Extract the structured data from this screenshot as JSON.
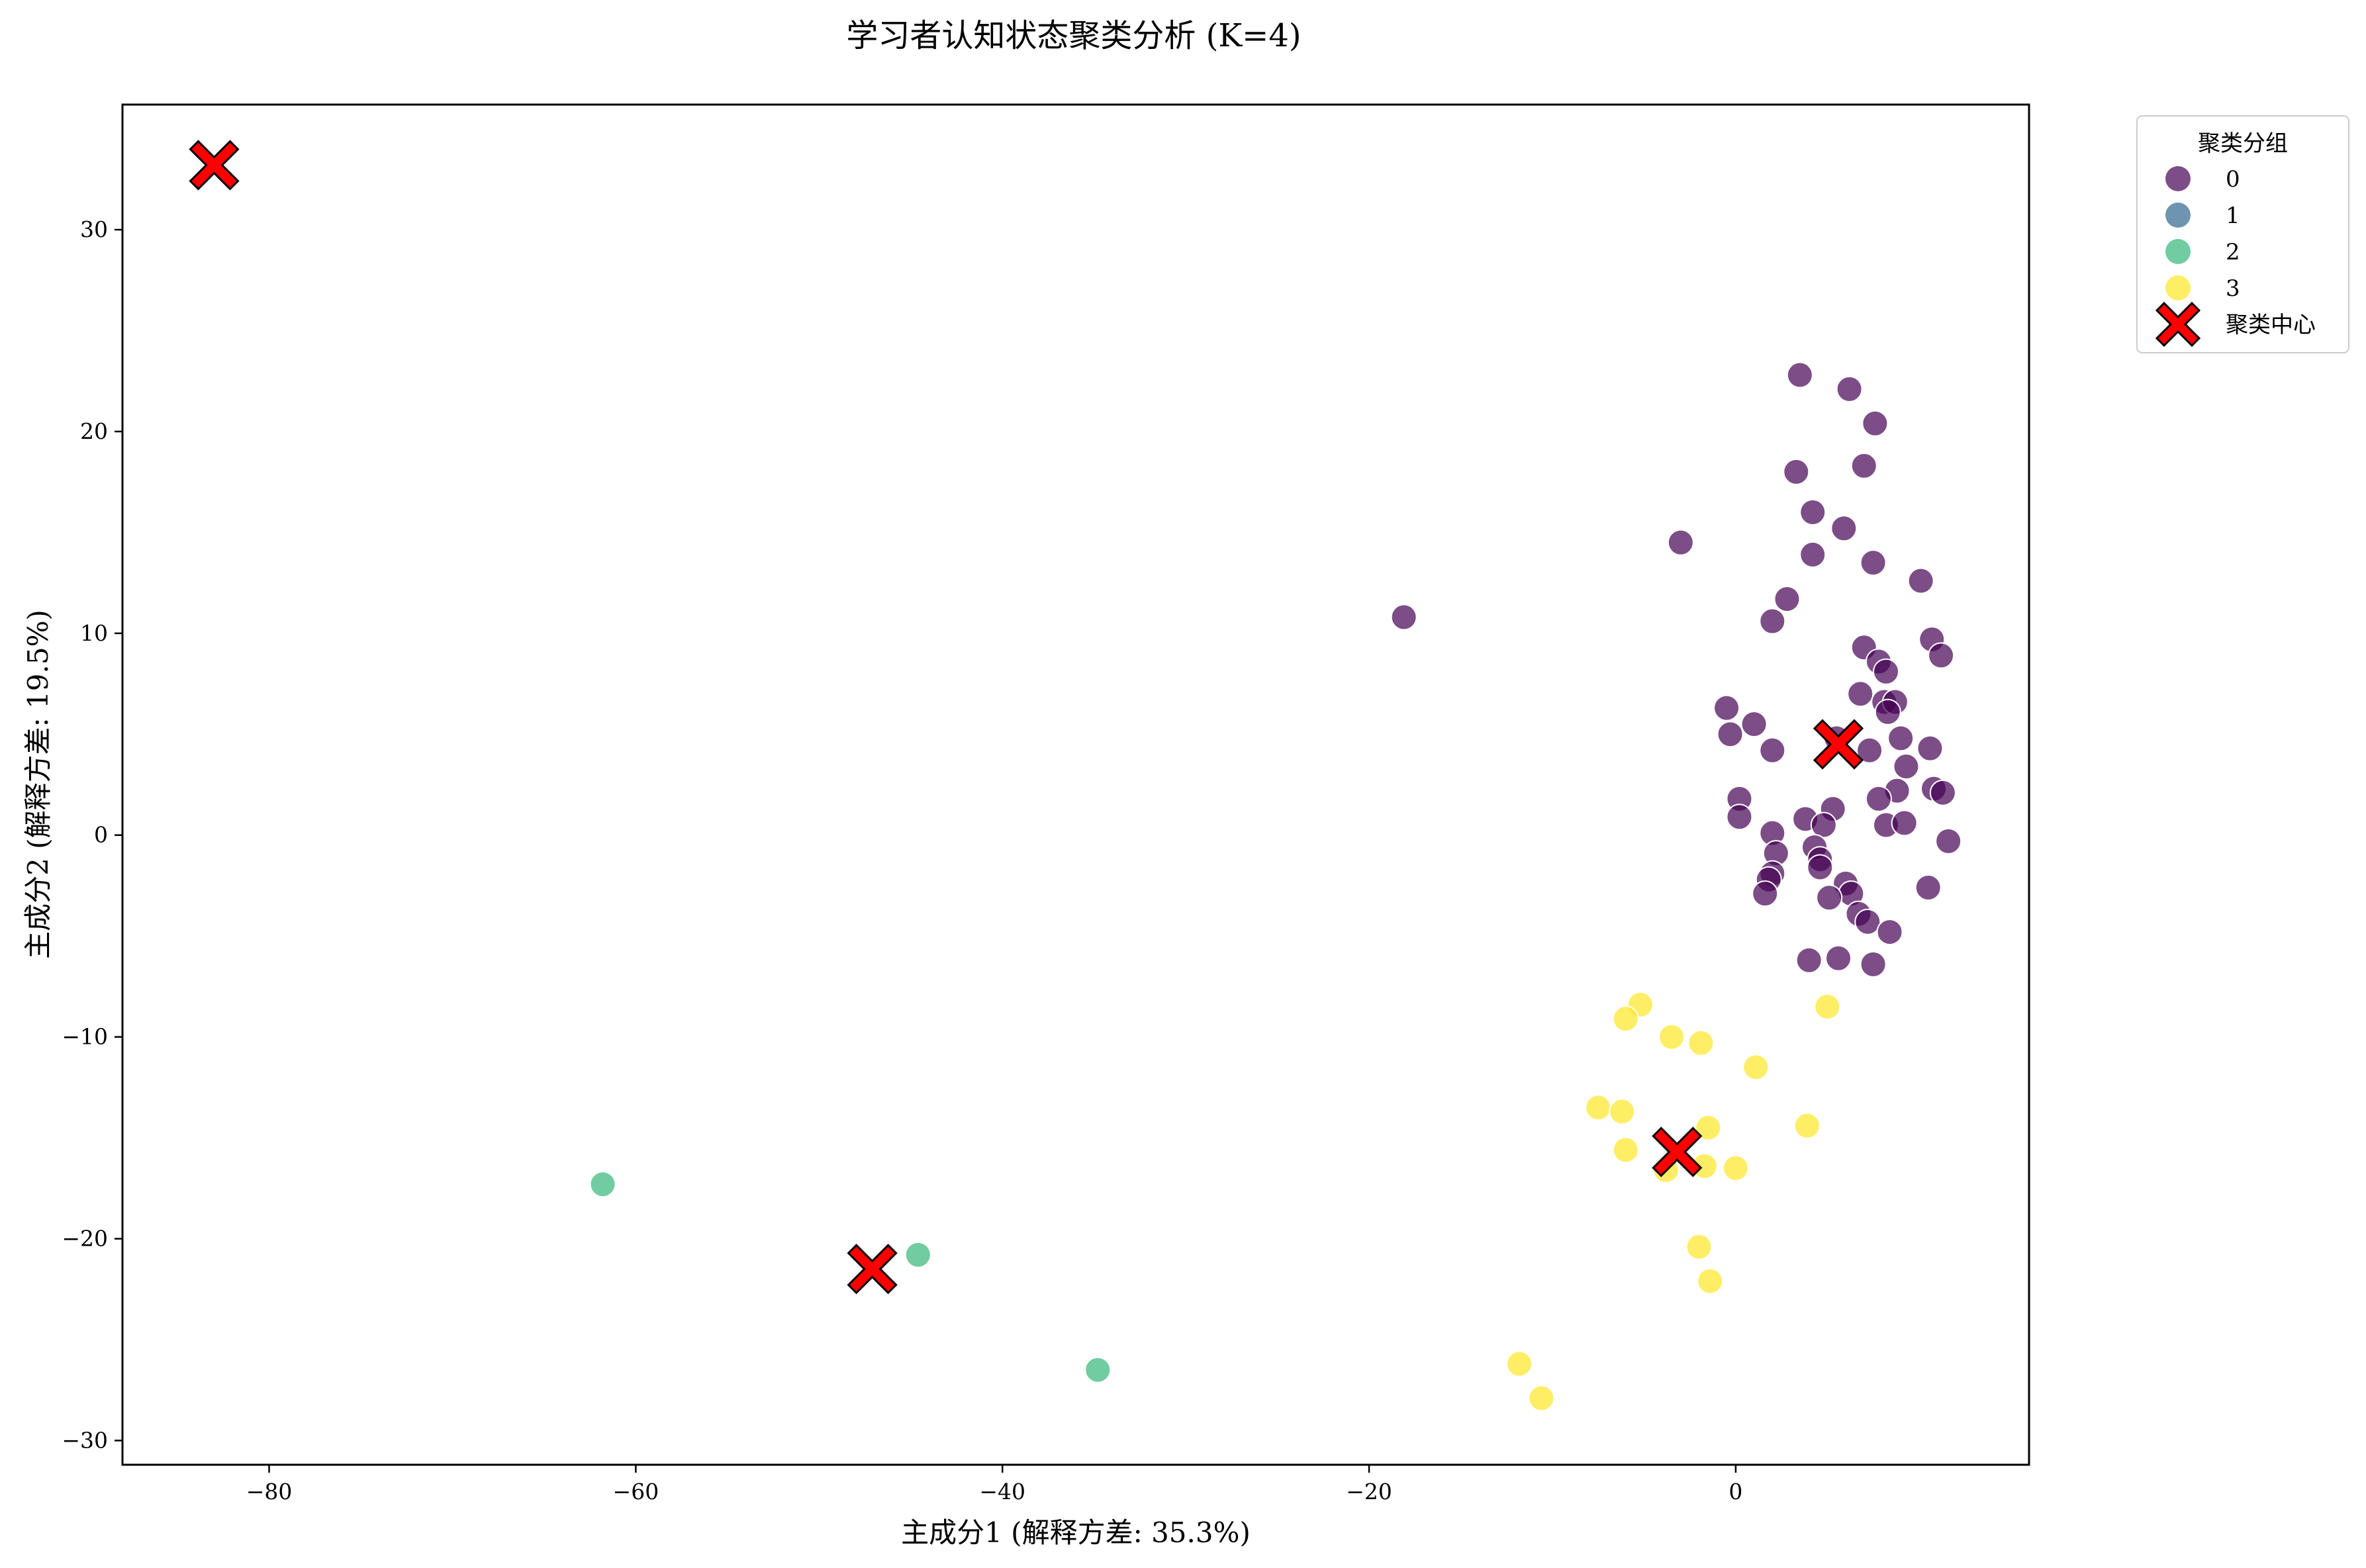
{
  "chart_data": {
    "type": "scatter",
    "title": "学习者认知状态聚类分析 (K=4)",
    "xlabel": "主成分1 (解释方差: 35.3%)",
    "ylabel": "主成分2 (解释方差: 19.5%)",
    "xlim": [
      -88,
      16
    ],
    "ylim": [
      -31.2,
      36.2
    ],
    "xticks": [
      -80,
      -60,
      -40,
      -20,
      0
    ],
    "yticks": [
      -30,
      -20,
      -10,
      0,
      10,
      20,
      30
    ],
    "grid": false,
    "legend": {
      "title": "聚类分组",
      "position": "outside-top-right",
      "entries": [
        "0",
        "1",
        "2",
        "3",
        "聚类中心"
      ]
    },
    "colors": {
      "0": "#440154",
      "1": "#31688e",
      "2": "#35b779",
      "3": "#fde725",
      "centers": "#ff0000"
    },
    "series": [
      {
        "name": "0",
        "points": [
          [
            3.5,
            22.8
          ],
          [
            6.2,
            22.1
          ],
          [
            7.6,
            20.4
          ],
          [
            7.0,
            18.3
          ],
          [
            3.3,
            18.0
          ],
          [
            4.2,
            16.0
          ],
          [
            5.9,
            15.2
          ],
          [
            -3.0,
            14.5
          ],
          [
            4.2,
            13.9
          ],
          [
            7.5,
            13.5
          ],
          [
            10.1,
            12.6
          ],
          [
            -18.1,
            10.8
          ],
          [
            2.8,
            11.7
          ],
          [
            2.0,
            10.6
          ],
          [
            10.7,
            9.7
          ],
          [
            11.2,
            8.9
          ],
          [
            7.0,
            9.3
          ],
          [
            7.8,
            8.6
          ],
          [
            8.2,
            8.1
          ],
          [
            6.8,
            7.0
          ],
          [
            8.1,
            6.6
          ],
          [
            8.7,
            6.6
          ],
          [
            8.3,
            6.1
          ],
          [
            -0.5,
            6.3
          ],
          [
            1.0,
            5.5
          ],
          [
            -0.3,
            5.0
          ],
          [
            5.5,
            4.8
          ],
          [
            7.3,
            4.2
          ],
          [
            9.0,
            4.8
          ],
          [
            10.6,
            4.3
          ],
          [
            2.0,
            4.2
          ],
          [
            9.3,
            3.4
          ],
          [
            10.8,
            2.3
          ],
          [
            11.3,
            2.1
          ],
          [
            8.8,
            2.2
          ],
          [
            7.8,
            1.8
          ],
          [
            0.2,
            1.8
          ],
          [
            0.2,
            0.9
          ],
          [
            5.3,
            1.3
          ],
          [
            3.8,
            0.8
          ],
          [
            8.2,
            0.5
          ],
          [
            9.2,
            0.6
          ],
          [
            4.8,
            0.5
          ],
          [
            2.0,
            0.1
          ],
          [
            11.6,
            -0.3
          ],
          [
            4.3,
            -0.6
          ],
          [
            2.2,
            -0.9
          ],
          [
            4.6,
            -1.2
          ],
          [
            4.6,
            -1.6
          ],
          [
            2.0,
            -1.9
          ],
          [
            1.8,
            -2.2
          ],
          [
            6.0,
            -2.4
          ],
          [
            10.5,
            -2.6
          ],
          [
            1.6,
            -2.9
          ],
          [
            6.3,
            -2.9
          ],
          [
            5.1,
            -3.1
          ],
          [
            6.7,
            -3.9
          ],
          [
            7.2,
            -4.3
          ],
          [
            8.4,
            -4.8
          ],
          [
            4.0,
            -6.2
          ],
          [
            5.6,
            -6.1
          ],
          [
            7.5,
            -6.4
          ]
        ]
      },
      {
        "name": "1",
        "points": []
      },
      {
        "name": "2",
        "points": [
          [
            -61.8,
            -17.3
          ],
          [
            -44.6,
            -20.8
          ],
          [
            -34.8,
            -26.5
          ]
        ]
      },
      {
        "name": "3",
        "points": [
          [
            -5.2,
            -8.4
          ],
          [
            -6.0,
            -9.1
          ],
          [
            5.0,
            -8.5
          ],
          [
            -3.5,
            -10.0
          ],
          [
            -1.9,
            -10.3
          ],
          [
            1.1,
            -11.5
          ],
          [
            -7.5,
            -13.5
          ],
          [
            -6.2,
            -13.7
          ],
          [
            -1.5,
            -14.5
          ],
          [
            3.9,
            -14.4
          ],
          [
            -6.0,
            -15.6
          ],
          [
            -3.8,
            -16.6
          ],
          [
            -1.7,
            -16.4
          ],
          [
            0.0,
            -16.5
          ],
          [
            -2.0,
            -20.4
          ],
          [
            -1.4,
            -22.1
          ],
          [
            -11.8,
            -26.2
          ],
          [
            -10.6,
            -27.9
          ]
        ]
      }
    ],
    "centers": [
      [
        -83.0,
        33.2
      ],
      [
        5.6,
        4.5
      ],
      [
        -3.2,
        -15.7
      ],
      [
        -47.1,
        -21.5
      ]
    ]
  }
}
